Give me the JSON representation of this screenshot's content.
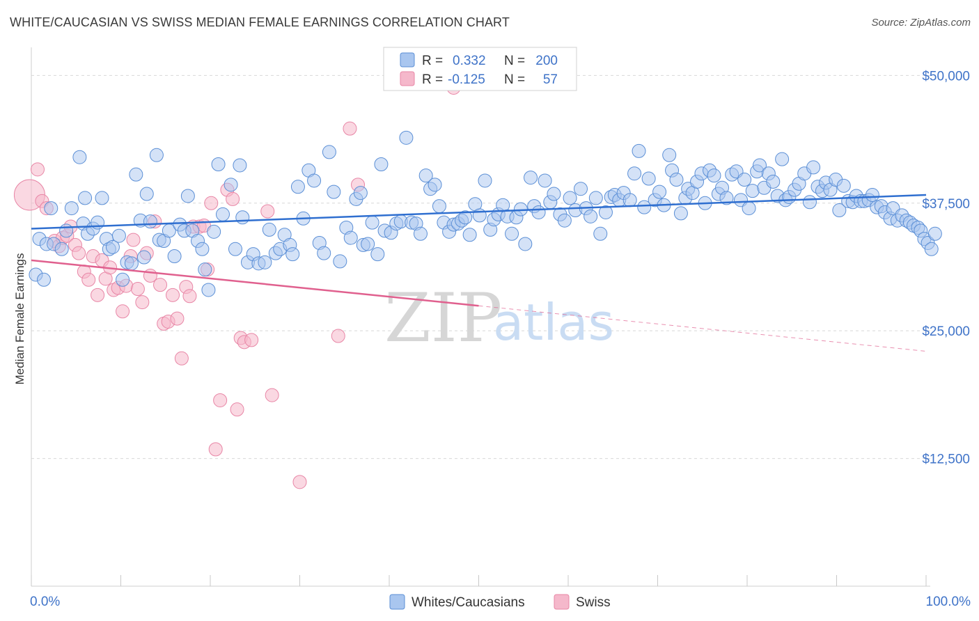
{
  "title": "WHITE/CAUCASIAN VS SWISS MEDIAN FEMALE EARNINGS CORRELATION CHART",
  "source": "Source: ZipAtlas.com",
  "legend": {
    "r_label": "R =",
    "n_label": "N =",
    "rows": [
      {
        "r": "0.332",
        "n": "200"
      },
      {
        "r": "-0.125",
        "n": "57"
      }
    ]
  },
  "watermark": {
    "zip": "ZIP",
    "atlas": "atlas"
  },
  "colors": {
    "blue_fill": "#a9c6ef",
    "blue_stroke": "#5b8fd6",
    "blue_line": "#2f6fd0",
    "pink_fill": "#f5b8cb",
    "pink_stroke": "#e886a6",
    "pink_line": "#e0608e",
    "grid": "#d7d7d7",
    "tick_text": "#3f73c8"
  },
  "chart_data": {
    "type": "scatter",
    "title": "WHITE/CAUCASIAN VS SWISS MEDIAN FEMALE EARNINGS CORRELATION CHART",
    "xlabel": "",
    "ylabel": "Median Female Earnings",
    "xlim": [
      0,
      100
    ],
    "ylim": [
      0,
      52000
    ],
    "x_tick_labels": [
      "0.0%",
      "100.0%"
    ],
    "y_ticks": [
      12500,
      25000,
      37500,
      50000
    ],
    "y_tick_labels": [
      "$12,500",
      "$25,000",
      "$37,500",
      "$50,000"
    ],
    "grid": "horizontal dashed",
    "legend_position": "top-center",
    "series": [
      {
        "name": "Whites/Caucasians",
        "r": 0.332,
        "n": 200,
        "trend": {
          "x": [
            0,
            100
          ],
          "y": [
            35000,
            38300
          ],
          "dashed_from": null
        },
        "points": [
          [
            0.5,
            30500
          ],
          [
            0.9,
            34000
          ],
          [
            1.4,
            30000
          ],
          [
            1.7,
            33500
          ],
          [
            2.2,
            37000
          ],
          [
            2.5,
            33500
          ],
          [
            3.4,
            33000
          ],
          [
            3.9,
            34800
          ],
          [
            4.5,
            37000
          ],
          [
            5.4,
            42000
          ],
          [
            5.8,
            35500
          ],
          [
            6.0,
            38000
          ],
          [
            6.3,
            34500
          ],
          [
            6.9,
            35000
          ],
          [
            7.4,
            35600
          ],
          [
            7.9,
            38000
          ],
          [
            8.4,
            34000
          ],
          [
            8.7,
            33000
          ],
          [
            9.1,
            33200
          ],
          [
            9.8,
            34300
          ],
          [
            10.2,
            30000
          ],
          [
            10.7,
            31700
          ],
          [
            11.2,
            31600
          ],
          [
            11.7,
            40300
          ],
          [
            12.2,
            35800
          ],
          [
            12.6,
            32200
          ],
          [
            12.9,
            38400
          ],
          [
            13.3,
            35700
          ],
          [
            14.0,
            42200
          ],
          [
            14.3,
            33900
          ],
          [
            14.8,
            33800
          ],
          [
            15.4,
            34800
          ],
          [
            16.0,
            32300
          ],
          [
            16.6,
            35400
          ],
          [
            17.1,
            34800
          ],
          [
            17.5,
            38200
          ],
          [
            18.0,
            34800
          ],
          [
            18.6,
            33800
          ],
          [
            19.1,
            33000
          ],
          [
            19.4,
            31000
          ],
          [
            19.8,
            29000
          ],
          [
            20.4,
            34700
          ],
          [
            20.9,
            41300
          ],
          [
            21.4,
            36400
          ],
          [
            22.3,
            39300
          ],
          [
            22.8,
            33000
          ],
          [
            23.3,
            41200
          ],
          [
            23.6,
            36100
          ],
          [
            24.2,
            31700
          ],
          [
            24.8,
            32500
          ],
          [
            25.4,
            31600
          ],
          [
            26.1,
            31700
          ],
          [
            26.6,
            34900
          ],
          [
            27.3,
            32600
          ],
          [
            27.8,
            33000
          ],
          [
            28.3,
            34400
          ],
          [
            28.9,
            33400
          ],
          [
            29.2,
            32500
          ],
          [
            29.8,
            39100
          ],
          [
            30.4,
            36000
          ],
          [
            31.0,
            40700
          ],
          [
            31.6,
            39700
          ],
          [
            32.2,
            33600
          ],
          [
            32.7,
            32600
          ],
          [
            33.3,
            42500
          ],
          [
            33.8,
            38600
          ],
          [
            34.5,
            31800
          ],
          [
            35.2,
            35100
          ],
          [
            35.7,
            34100
          ],
          [
            36.3,
            37900
          ],
          [
            36.8,
            38500
          ],
          [
            37.1,
            33400
          ],
          [
            37.6,
            33500
          ],
          [
            38.1,
            35600
          ],
          [
            38.7,
            32500
          ],
          [
            39.1,
            41300
          ],
          [
            39.5,
            34800
          ],
          [
            40.2,
            34600
          ],
          [
            40.8,
            35500
          ],
          [
            41.3,
            35700
          ],
          [
            41.9,
            43900
          ],
          [
            42.5,
            35600
          ],
          [
            43.0,
            35500
          ],
          [
            43.5,
            34500
          ],
          [
            44.1,
            40200
          ],
          [
            44.6,
            38900
          ],
          [
            45.1,
            39300
          ],
          [
            45.6,
            37200
          ],
          [
            46.1,
            35600
          ],
          [
            46.7,
            34700
          ],
          [
            47.2,
            35400
          ],
          [
            47.7,
            35500
          ],
          [
            48.1,
            35800
          ],
          [
            48.5,
            36100
          ],
          [
            49.0,
            34400
          ],
          [
            49.6,
            37400
          ],
          [
            50.1,
            36300
          ],
          [
            50.7,
            39700
          ],
          [
            51.3,
            34900
          ],
          [
            51.7,
            35900
          ],
          [
            52.2,
            36400
          ],
          [
            52.7,
            37300
          ],
          [
            53.2,
            36200
          ],
          [
            53.7,
            34500
          ],
          [
            54.2,
            36100
          ],
          [
            54.7,
            36900
          ],
          [
            55.2,
            33500
          ],
          [
            55.8,
            40000
          ],
          [
            56.2,
            37200
          ],
          [
            56.7,
            36600
          ],
          [
            57.4,
            39700
          ],
          [
            58.0,
            37600
          ],
          [
            58.4,
            38400
          ],
          [
            59.1,
            36400
          ],
          [
            59.6,
            35800
          ],
          [
            60.2,
            38000
          ],
          [
            60.8,
            36800
          ],
          [
            61.4,
            38900
          ],
          [
            62.0,
            37000
          ],
          [
            62.5,
            36200
          ],
          [
            63.1,
            38000
          ],
          [
            63.6,
            34500
          ],
          [
            64.2,
            36600
          ],
          [
            64.8,
            38100
          ],
          [
            65.2,
            38300
          ],
          [
            65.7,
            37800
          ],
          [
            66.2,
            38500
          ],
          [
            66.9,
            37800
          ],
          [
            67.4,
            40400
          ],
          [
            67.9,
            42600
          ],
          [
            68.5,
            37100
          ],
          [
            69.0,
            39900
          ],
          [
            69.7,
            37800
          ],
          [
            70.2,
            38600
          ],
          [
            70.7,
            37300
          ],
          [
            71.3,
            42200
          ],
          [
            71.6,
            40700
          ],
          [
            72.1,
            39800
          ],
          [
            72.6,
            36500
          ],
          [
            73.1,
            38000
          ],
          [
            73.4,
            38900
          ],
          [
            73.9,
            38500
          ],
          [
            74.4,
            39600
          ],
          [
            74.9,
            40400
          ],
          [
            75.3,
            37500
          ],
          [
            75.8,
            40700
          ],
          [
            76.3,
            40200
          ],
          [
            76.8,
            38400
          ],
          [
            77.2,
            39000
          ],
          [
            77.7,
            38000
          ],
          [
            78.3,
            40300
          ],
          [
            78.8,
            40600
          ],
          [
            79.3,
            37800
          ],
          [
            79.7,
            39800
          ],
          [
            80.2,
            37000
          ],
          [
            80.6,
            38700
          ],
          [
            81.1,
            40600
          ],
          [
            81.4,
            41200
          ],
          [
            81.9,
            39000
          ],
          [
            82.4,
            40400
          ],
          [
            82.9,
            39600
          ],
          [
            83.4,
            38200
          ],
          [
            83.9,
            41800
          ],
          [
            84.3,
            37800
          ],
          [
            84.7,
            38100
          ],
          [
            85.3,
            38800
          ],
          [
            85.8,
            39400
          ],
          [
            86.4,
            40400
          ],
          [
            87.0,
            37600
          ],
          [
            87.4,
            41000
          ],
          [
            87.9,
            39100
          ],
          [
            88.4,
            38700
          ],
          [
            88.8,
            39500
          ],
          [
            89.3,
            38800
          ],
          [
            89.9,
            39800
          ],
          [
            90.3,
            36800
          ],
          [
            90.8,
            39200
          ],
          [
            91.3,
            37700
          ],
          [
            91.8,
            37600
          ],
          [
            92.2,
            38200
          ],
          [
            92.7,
            37700
          ],
          [
            93.1,
            37700
          ],
          [
            93.6,
            37800
          ],
          [
            94.0,
            38300
          ],
          [
            94.5,
            37100
          ],
          [
            95.0,
            37200
          ],
          [
            95.4,
            36600
          ],
          [
            96.0,
            36000
          ],
          [
            96.3,
            37000
          ],
          [
            96.8,
            35800
          ],
          [
            97.3,
            36300
          ],
          [
            97.8,
            35800
          ],
          [
            98.2,
            35600
          ],
          [
            98.6,
            35300
          ],
          [
            99.1,
            35100
          ],
          [
            99.4,
            34800
          ],
          [
            99.8,
            34000
          ],
          [
            100.2,
            33600
          ],
          [
            100.6,
            33000
          ],
          [
            101.0,
            34500
          ]
        ]
      },
      {
        "name": "Swiss",
        "r": -0.125,
        "n": 57,
        "trend": {
          "x": [
            0,
            100
          ],
          "y": [
            31900,
            23000
          ],
          "dashed_from": 50
        },
        "points": [
          [
            -0.2,
            38300
          ],
          [
            0.7,
            40800
          ],
          [
            1.2,
            37700
          ],
          [
            1.7,
            37000
          ],
          [
            2.6,
            33800
          ],
          [
            3.1,
            33300
          ],
          [
            3.5,
            34100
          ],
          [
            4.0,
            34300
          ],
          [
            4.4,
            35200
          ],
          [
            4.9,
            33400
          ],
          [
            5.3,
            32600
          ],
          [
            5.9,
            30800
          ],
          [
            6.4,
            30000
          ],
          [
            6.9,
            32300
          ],
          [
            7.4,
            28500
          ],
          [
            7.9,
            31900
          ],
          [
            8.3,
            30100
          ],
          [
            8.8,
            31200
          ],
          [
            9.2,
            29000
          ],
          [
            9.7,
            29200
          ],
          [
            10.2,
            26900
          ],
          [
            10.6,
            29400
          ],
          [
            11.1,
            32300
          ],
          [
            11.4,
            33900
          ],
          [
            11.9,
            29100
          ],
          [
            12.4,
            27800
          ],
          [
            12.9,
            32600
          ],
          [
            13.3,
            30400
          ],
          [
            13.8,
            35700
          ],
          [
            14.4,
            29500
          ],
          [
            14.8,
            25700
          ],
          [
            15.3,
            25900
          ],
          [
            15.8,
            28500
          ],
          [
            16.3,
            26200
          ],
          [
            16.8,
            22300
          ],
          [
            17.3,
            29300
          ],
          [
            17.7,
            28400
          ],
          [
            18.1,
            35200
          ],
          [
            18.8,
            35200
          ],
          [
            19.3,
            35300
          ],
          [
            19.7,
            31000
          ],
          [
            20.1,
            37500
          ],
          [
            20.6,
            13400
          ],
          [
            21.1,
            18200
          ],
          [
            21.9,
            38800
          ],
          [
            22.5,
            37900
          ],
          [
            23.0,
            17300
          ],
          [
            23.4,
            24300
          ],
          [
            23.8,
            23900
          ],
          [
            24.6,
            24100
          ],
          [
            26.4,
            36700
          ],
          [
            26.9,
            18700
          ],
          [
            30.0,
            10200
          ],
          [
            34.3,
            24500
          ],
          [
            35.6,
            44800
          ],
          [
            36.5,
            39300
          ],
          [
            47.2,
            48800
          ]
        ]
      }
    ]
  },
  "bottom_legend": [
    "Whites/Caucasians",
    "Swiss"
  ]
}
